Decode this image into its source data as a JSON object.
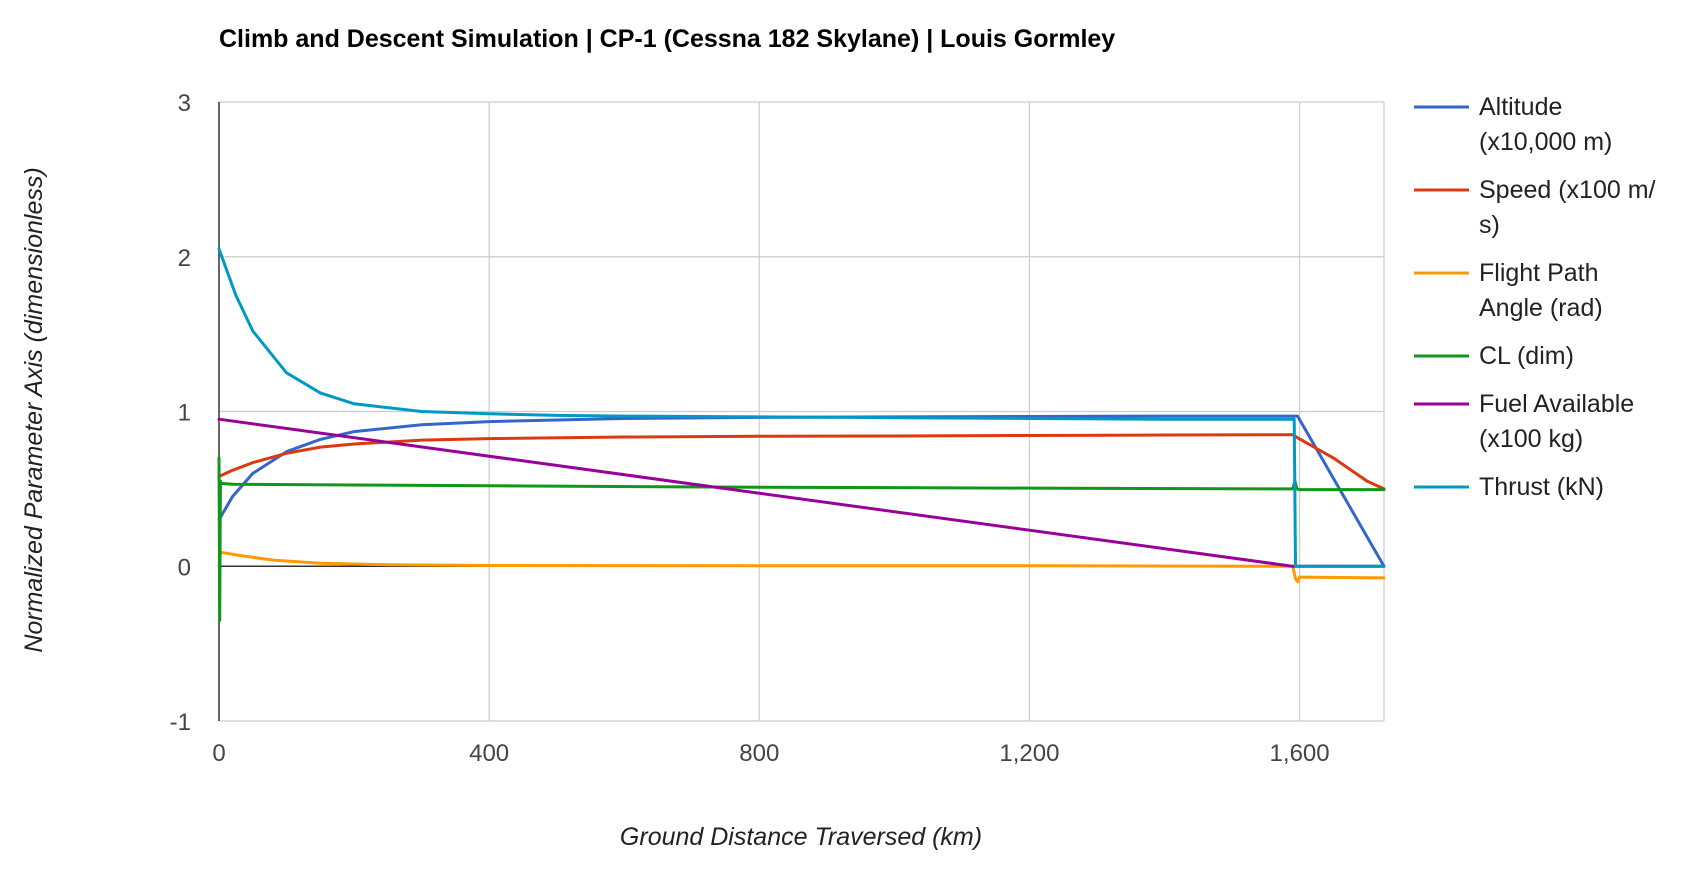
{
  "chart_data": {
    "type": "line",
    "title": "Climb and Descent Simulation | CP-1 (Cessna 182 Skylane) | Louis Gormley",
    "xlabel": "Ground Distance Traversed (km)",
    "ylabel": "Normalized Parameter Axis (dimensionless)",
    "xlim": [
      0,
      1725
    ],
    "ylim": [
      -1,
      3
    ],
    "x_ticks": [
      0,
      400,
      800,
      1200,
      1600
    ],
    "x_tick_labels": [
      "0",
      "400",
      "800",
      "1,200",
      "1,600"
    ],
    "y_ticks": [
      -1,
      0,
      1,
      2,
      3
    ],
    "y_tick_labels": [
      "-1",
      "0",
      "1",
      "2",
      "3"
    ],
    "grid": true,
    "legend": "right",
    "series": [
      {
        "name": "Altitude (x10,000 m)",
        "legend_lines": [
          "Altitude",
          "(x10,000 m)"
        ],
        "color": "#3366cc",
        "x": [
          0,
          20,
          50,
          100,
          150,
          200,
          300,
          400,
          500,
          600,
          800,
          1000,
          1200,
          1400,
          1590,
          1597,
          1725
        ],
        "y": [
          0.3,
          0.45,
          0.6,
          0.74,
          0.82,
          0.87,
          0.915,
          0.935,
          0.945,
          0.955,
          0.962,
          0.965,
          0.968,
          0.97,
          0.97,
          0.97,
          0.0
        ]
      },
      {
        "name": "Speed (x100 m/s)",
        "legend_lines": [
          "Speed (x100 m/",
          "s)"
        ],
        "color": "#dc3912",
        "x": [
          0,
          20,
          50,
          100,
          150,
          200,
          300,
          400,
          600,
          800,
          1000,
          1200,
          1400,
          1590,
          1597,
          1650,
          1700,
          1725
        ],
        "y": [
          0.58,
          0.62,
          0.67,
          0.73,
          0.77,
          0.79,
          0.815,
          0.825,
          0.835,
          0.84,
          0.842,
          0.845,
          0.848,
          0.85,
          0.83,
          0.7,
          0.55,
          0.5
        ]
      },
      {
        "name": "Flight Path Angle (rad)",
        "legend_lines": [
          "Flight Path",
          "Angle (rad)"
        ],
        "color": "#ff9900",
        "x": [
          0,
          2,
          30,
          80,
          150,
          250,
          400,
          800,
          1200,
          1590,
          1594,
          1597,
          1600,
          1725
        ],
        "y": [
          0.0,
          0.09,
          0.07,
          0.04,
          0.02,
          0.01,
          0.005,
          0.003,
          0.003,
          0.0,
          -0.08,
          -0.1,
          -0.07,
          -0.075
        ]
      },
      {
        "name": "CL (dim)",
        "legend_lines": [
          "CL (dim)"
        ],
        "color": "#109618",
        "x": [
          0,
          1,
          2,
          3,
          5,
          20,
          200,
          400,
          800,
          1200,
          1590,
          1593,
          1596,
          1600,
          1725
        ],
        "y": [
          0.7,
          -0.35,
          0.55,
          0.53,
          0.535,
          0.53,
          0.525,
          0.52,
          0.51,
          0.505,
          0.5,
          0.55,
          0.5,
          0.495,
          0.495
        ]
      },
      {
        "name": "Fuel Available (x100 kg)",
        "legend_lines": [
          "Fuel Available",
          "(x100 kg)"
        ],
        "color": "#990099",
        "x": [
          0,
          1590,
          1597,
          1725
        ],
        "y": [
          0.95,
          0.0,
          0.0,
          0.0
        ]
      },
      {
        "name": "Thrust (kN)",
        "legend_lines": [
          "Thrust (kN)"
        ],
        "color": "#0099c6",
        "x": [
          0,
          25,
          50,
          100,
          150,
          200,
          300,
          400,
          500,
          600,
          800,
          1000,
          1200,
          1400,
          1592,
          1594,
          1596,
          1725
        ],
        "y": [
          2.05,
          1.75,
          1.52,
          1.25,
          1.12,
          1.05,
          1.0,
          0.985,
          0.975,
          0.97,
          0.965,
          0.96,
          0.955,
          0.95,
          0.95,
          0.0,
          0.0,
          0.0
        ]
      }
    ]
  }
}
